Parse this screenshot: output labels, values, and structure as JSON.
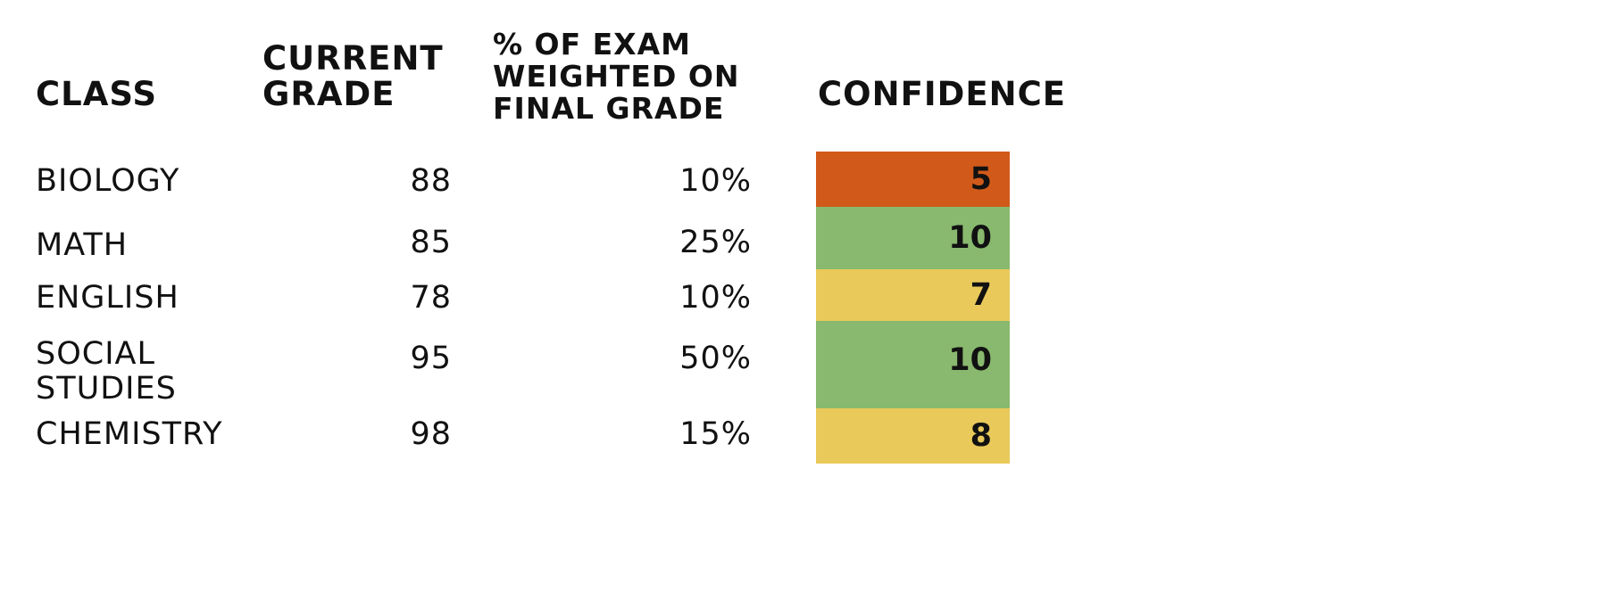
{
  "table": {
    "headers": {
      "class": "CLASS",
      "current_grade": [
        "CURRENT",
        "GRADE"
      ],
      "exam_weight": [
        "% OF EXAM",
        "WEIGHTED ON",
        "FINAL GRADE"
      ],
      "confidence": "CONFIDENCE"
    },
    "rows": [
      {
        "class": [
          "BIOLOGY"
        ],
        "grade": "88",
        "weight": "10%",
        "confidence": "5",
        "confidence_color": "#d15a1a"
      },
      {
        "class": [
          "MATH"
        ],
        "grade": "85",
        "weight": "25%",
        "confidence": "10",
        "confidence_color": "#88b96e"
      },
      {
        "class": [
          "ENGLISH"
        ],
        "grade": "78",
        "weight": "10%",
        "confidence": "7",
        "confidence_color": "#e8c95a"
      },
      {
        "class": [
          "SOCIAL",
          "STUDIES"
        ],
        "grade": "95",
        "weight": "50%",
        "confidence": "10",
        "confidence_color": "#88b96e"
      },
      {
        "class": [
          "CHEMISTRY"
        ],
        "grade": "98",
        "weight": "15%",
        "confidence": "8",
        "confidence_color": "#e8c95a"
      }
    ]
  }
}
